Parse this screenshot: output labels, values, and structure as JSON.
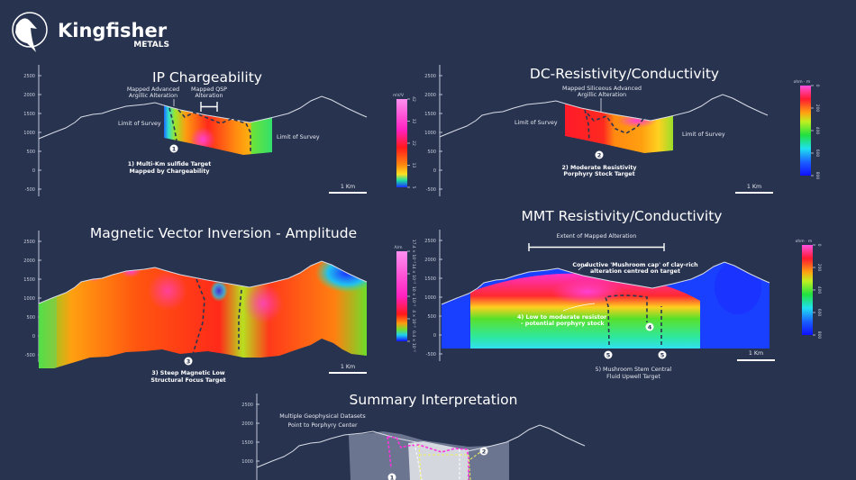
{
  "brand": {
    "name": "Kingfisher",
    "subname": "METALS"
  },
  "axis_ticks": [
    "2500",
    "2000",
    "1500",
    "1000",
    "500",
    "0",
    "-500"
  ],
  "scale_bar_label": "1 Km",
  "panels": {
    "ip": {
      "title": "IP Chargeability",
      "unit": "mV/V",
      "colorbar_ticks": [
        "42",
        "32",
        "22",
        "13",
        "5"
      ],
      "annotations": {
        "adv_argillic_1": "Mapped Advanced",
        "adv_argillic_2": "Argillic Alteration",
        "qsp_1": "Mapped QSP",
        "qsp_2": "Alteration",
        "limit_left": "Limit of Survey",
        "limit_right": "Limit of Survey",
        "marker": "1",
        "target_1": "1) Multi-Km sulfide Target",
        "target_2": "Mapped by Chargeability"
      }
    },
    "dc": {
      "title": "DC-Resistivity/Conductivity",
      "unit": "ohm · m",
      "colorbar_ticks": [
        "0",
        "200",
        "400",
        "600",
        "800"
      ],
      "annotations": {
        "siliceous_1": "Mapped Siliceous Advanced",
        "siliceous_2": "Argillic Alteration",
        "limit_left": "Limit of Survey",
        "limit_right": "Limit of Survey",
        "marker": "2",
        "target_1": "2) Moderate Resistivity",
        "target_2": "Porphyry Stock Target"
      }
    },
    "mvi": {
      "title": "Magnetic Vector Inversion - Amplitude",
      "unit": "A/m",
      "colorbar_ticks": [
        "17.4 × 10⁻²",
        "14 × 10⁻²",
        "10 × 10⁻²",
        "4 × 10⁻²",
        "0.4 × 10⁻²"
      ],
      "annotations": {
        "marker": "3",
        "target_1": "3) Steep Magnetic Low",
        "target_2": "Structural Focus Target"
      }
    },
    "mmt": {
      "title": "MMT Resistivity/Conductivity",
      "unit": "ohm · m",
      "colorbar_ticks": [
        "0",
        "200",
        "400",
        "600",
        "800"
      ],
      "annotations": {
        "extent": "Extent of Mapped Alteration",
        "cap_1": "Conductive 'Mushroom cap' of clay-rich",
        "cap_2": "alteration centred on target",
        "resistor_1": "4) Low to moderate resistor",
        "resistor_2": "- potential porphyry stock",
        "marker_4": "4",
        "marker_5a": "5",
        "marker_5b": "5",
        "target_1": "5) Mushroom Stem Central",
        "target_2": "Fluid Upwell Target"
      }
    },
    "summary": {
      "title": "Summary Interpretation",
      "annotations": {
        "note_1": "Multiple Geophysical Datasets",
        "note_2": "Point to Porphyry Center",
        "marker_1": "1",
        "marker_2": "2"
      }
    }
  },
  "colors": {
    "background": "#283350",
    "profile": "#d8dce6",
    "magenta": "#ff33dd",
    "yellow": "#f2f25a"
  }
}
